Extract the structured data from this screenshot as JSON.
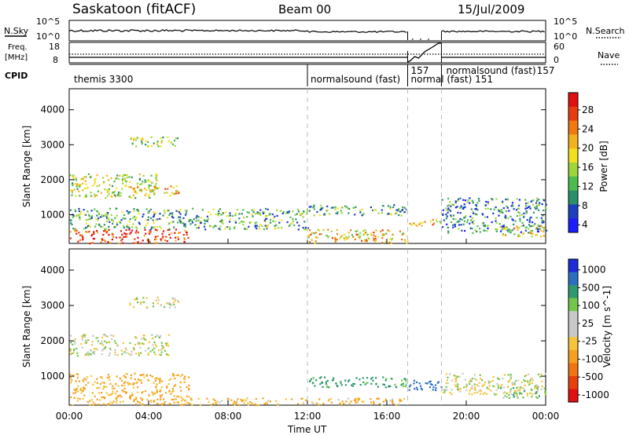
{
  "header": {
    "station": "Saskatoon (fitACF)",
    "beam": "Beam 00",
    "date": "15/Jul/2009"
  },
  "noise_panel": {
    "left_label": "N.Sky",
    "right_label": "N.Search",
    "left_ticks": [
      "10^5",
      "10^0"
    ],
    "right_ticks": [
      "10^5",
      "10^0"
    ]
  },
  "freq_panel": {
    "left_label_line1": "Freq.",
    "left_label_line2": "[MHz]",
    "right_label": "Nave",
    "left_ticks": [
      "18",
      "8"
    ],
    "right_ticks": [
      "60",
      "0"
    ]
  },
  "cpid": {
    "label": "CPID",
    "segments": [
      {
        "text": "themis 3300",
        "start": 0.0
      },
      {
        "text": "normalsound (fast)",
        "start": 12.0
      },
      {
        "text": "157",
        "start": 17.05
      },
      {
        "text": "normal (fast) 151",
        "start": 17.05
      },
      {
        "text": "normalsound (fast)",
        "start": 18.75
      },
      {
        "text": "157",
        "start": 18.75
      }
    ]
  },
  "time_axis": {
    "label": "Time UT",
    "ticks": [
      "00:00",
      "04:00",
      "08:00",
      "12:00",
      "16:00",
      "20:00",
      "00:00"
    ],
    "range_hours": [
      0,
      24
    ],
    "mode_change_hours": [
      12.0,
      17.05,
      18.75
    ]
  },
  "power_panel": {
    "ylabel": "Slant Range [km]",
    "yticks": [
      "4000",
      "3000",
      "2000",
      "1000"
    ],
    "colorbar_label": "Power [dB]",
    "colorbar_ticks": [
      "28",
      "24",
      "20",
      "16",
      "12",
      "8",
      "4"
    ],
    "colorbar_colors": [
      "#1c1cff",
      "#1c3fbf",
      "#2b8f6b",
      "#4dbb4d",
      "#9dd63a",
      "#f2e01e",
      "#f2b21e",
      "#f07a10",
      "#e83c10",
      "#e11010"
    ]
  },
  "velocity_panel": {
    "ylabel": "Slant Range [km]",
    "yticks": [
      "4000",
      "3000",
      "2000",
      "1000"
    ],
    "colorbar_label": "Velocity [m s^-1]",
    "colorbar_ticks": [
      "1000",
      "500",
      "100",
      "25",
      "-25",
      "-100",
      "-500",
      "-1000"
    ],
    "colorbar_colors": [
      "#1d2bd8",
      "#2c6fbf",
      "#2f9a70",
      "#72c64a",
      "#c8c8c8",
      "#c8c8c8",
      "#f5c43a",
      "#f5a020",
      "#f07414",
      "#e8400c",
      "#e11010"
    ]
  },
  "chart_data": [
    {
      "type": "heatmap",
      "title": "Power",
      "xlabel": "Time UT",
      "ylabel": "Slant Range [km]",
      "xlim": [
        0,
        24
      ],
      "ylim": [
        180,
        4600
      ],
      "colorbar_label": "Power [dB]",
      "colorbar_range": [
        0,
        30
      ],
      "patches": [
        {
          "t": [
            0.0,
            6.0
          ],
          "r": [
            200,
            600
          ],
          "value": 26
        },
        {
          "t": [
            0.0,
            4.5
          ],
          "r": [
            1500,
            2200
          ],
          "value": 14
        },
        {
          "t": [
            0.0,
            12.0
          ],
          "r": [
            600,
            1200
          ],
          "value": 10
        },
        {
          "t": [
            3.0,
            5.5
          ],
          "r": [
            1550,
            1850
          ],
          "value": 18
        },
        {
          "t": [
            3.0,
            5.5
          ],
          "r": [
            2950,
            3250
          ],
          "value": 12
        },
        {
          "t": [
            12.0,
            17.0
          ],
          "r": [
            200,
            600
          ],
          "value": 18
        },
        {
          "t": [
            12.0,
            17.0
          ],
          "r": [
            1000,
            1300
          ],
          "value": 10
        },
        {
          "t": [
            17.05,
            18.75
          ],
          "r": [
            700,
            900
          ],
          "value": 18
        },
        {
          "t": [
            18.75,
            24.0
          ],
          "r": [
            500,
            1500
          ],
          "value": 8
        },
        {
          "t": [
            21.5,
            24.0
          ],
          "r": [
            400,
            700
          ],
          "value": 16
        }
      ]
    },
    {
      "type": "heatmap",
      "title": "Velocity",
      "xlabel": "Time UT",
      "ylabel": "Slant Range [km]",
      "xlim": [
        0,
        24
      ],
      "ylim": [
        180,
        4600
      ],
      "colorbar_label": "Velocity [m s^-1]",
      "colorbar_range": [
        -1000,
        1000
      ],
      "patches": [
        {
          "t": [
            0.0,
            6.0
          ],
          "r": [
            200,
            1100
          ],
          "value": -120
        },
        {
          "t": [
            0.0,
            5.0
          ],
          "r": [
            1600,
            2200
          ],
          "value": 0
        },
        {
          "t": [
            3.0,
            5.5
          ],
          "r": [
            2950,
            3250
          ],
          "value": 0
        },
        {
          "t": [
            6.0,
            17.0
          ],
          "r": [
            200,
            400
          ],
          "value": -100
        },
        {
          "t": [
            12.0,
            17.0
          ],
          "r": [
            700,
            1000
          ],
          "value": 150
        },
        {
          "t": [
            17.05,
            18.75
          ],
          "r": [
            600,
            900
          ],
          "value": 600
        },
        {
          "t": [
            18.75,
            24.0
          ],
          "r": [
            500,
            1100
          ],
          "value": 0
        },
        {
          "t": [
            21.5,
            24.0
          ],
          "r": [
            400,
            700
          ],
          "value": 40
        }
      ]
    }
  ]
}
